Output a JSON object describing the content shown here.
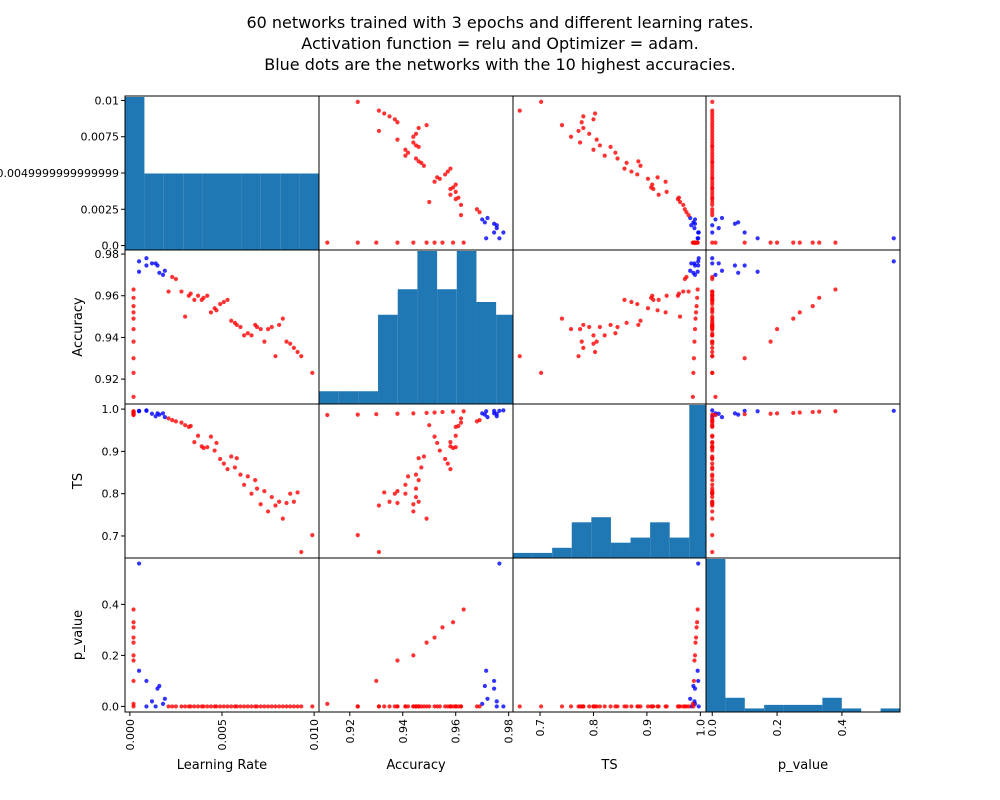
{
  "chart_data": {
    "type": "scatter_matrix",
    "title_lines": [
      "60 networks trained with 3 epochs and different learning rates.",
      "Activation function = relu and Optimizer = adam.",
      "Blue dots are the networks with the 10 highest accuracies."
    ],
    "variables": [
      "Learning Rate",
      "Accuracy",
      "TS",
      "p_value"
    ],
    "axes": {
      "Learning Rate": {
        "range": [
          -0.0001,
          0.0101
        ],
        "x_ticks": [
          0.0,
          0.005,
          0.01
        ],
        "x_tick_labels": [
          "0.000",
          "0.005",
          "0.010"
        ],
        "y_ticks": [
          0.0,
          0.0025,
          0.0049999999999999,
          0.0075,
          0.01
        ],
        "y_tick_labels": [
          "0.0",
          "0.0025",
          "0.0049999999999999",
          "0.0075",
          "0.01"
        ]
      },
      "Accuracy": {
        "range": [
          0.9095,
          0.9805
        ],
        "ticks": [
          0.92,
          0.94,
          0.96,
          0.98
        ],
        "tick_labels": [
          "0.92",
          "0.94",
          "0.96",
          "0.98"
        ]
      },
      "TS": {
        "range": [
          0.655,
          1.005
        ],
        "ticks": [
          0.7,
          0.8,
          0.9,
          1.0
        ],
        "tick_labels": [
          "0.7",
          "0.8",
          "0.9",
          "1.0"
        ]
      },
      "p_value": {
        "range": [
          -0.01,
          0.57
        ],
        "ticks": [
          0.0,
          0.2,
          0.4
        ],
        "tick_labels": [
          "0.0",
          "0.2",
          "0.4"
        ]
      }
    },
    "colors": {
      "top10": "#0000ff",
      "other": "#ff0000",
      "hist": "#1f77b4"
    },
    "points": [
      {
        "lr": 0.0002,
        "acc": 0.963,
        "ts": 0.995,
        "p": 0.38,
        "top": false
      },
      {
        "lr": 0.0002,
        "acc": 0.959,
        "ts": 0.994,
        "p": 0.33,
        "top": false
      },
      {
        "lr": 0.0002,
        "acc": 0.955,
        "ts": 0.993,
        "p": 0.31,
        "top": false
      },
      {
        "lr": 0.0002,
        "acc": 0.952,
        "ts": 0.992,
        "p": 0.27,
        "top": false
      },
      {
        "lr": 0.0002,
        "acc": 0.949,
        "ts": 0.991,
        "p": 0.25,
        "top": false
      },
      {
        "lr": 0.0002,
        "acc": 0.944,
        "ts": 0.99,
        "p": 0.2,
        "top": false
      },
      {
        "lr": 0.0002,
        "acc": 0.938,
        "ts": 0.989,
        "p": 0.18,
        "top": false
      },
      {
        "lr": 0.0002,
        "acc": 0.93,
        "ts": 0.988,
        "p": 0.1,
        "top": false
      },
      {
        "lr": 0.0002,
        "acc": 0.923,
        "ts": 0.987,
        "p": 0.0,
        "top": false
      },
      {
        "lr": 0.0002,
        "acc": 0.9115,
        "ts": 0.986,
        "p": 0.01,
        "top": false
      },
      {
        "lr": 0.0005,
        "acc": 0.9715,
        "ts": 0.995,
        "p": 0.14,
        "top": true
      },
      {
        "lr": 0.0005,
        "acc": 0.9765,
        "ts": 0.996,
        "p": 0.56,
        "top": true
      },
      {
        "lr": 0.0009,
        "acc": 0.9745,
        "ts": 0.996,
        "p": 0.1,
        "top": true
      },
      {
        "lr": 0.0009,
        "acc": 0.978,
        "ts": 0.997,
        "p": 0.0,
        "top": true
      },
      {
        "lr": 0.0012,
        "acc": 0.9755,
        "ts": 0.989,
        "p": 0.02,
        "top": true
      },
      {
        "lr": 0.0014,
        "acc": 0.9755,
        "ts": 0.983,
        "p": 0.0,
        "top": true
      },
      {
        "lr": 0.0015,
        "acc": 0.9745,
        "ts": 0.99,
        "p": 0.07,
        "top": true
      },
      {
        "lr": 0.0016,
        "acc": 0.971,
        "ts": 0.987,
        "p": 0.08,
        "top": true
      },
      {
        "lr": 0.0018,
        "acc": 0.97,
        "ts": 0.99,
        "p": 0.01,
        "top": true
      },
      {
        "lr": 0.0019,
        "acc": 0.972,
        "ts": 0.981,
        "p": 0.03,
        "top": true
      },
      {
        "lr": 0.0021,
        "acc": 0.962,
        "ts": 0.978,
        "p": 0.0,
        "top": false
      },
      {
        "lr": 0.0023,
        "acc": 0.969,
        "ts": 0.974,
        "p": 0.0,
        "top": false
      },
      {
        "lr": 0.0025,
        "acc": 0.968,
        "ts": 0.971,
        "p": 0.0,
        "top": false
      },
      {
        "lr": 0.0028,
        "acc": 0.962,
        "ts": 0.968,
        "p": 0.0,
        "top": false
      },
      {
        "lr": 0.003,
        "acc": 0.95,
        "ts": 0.962,
        "p": 0.0,
        "top": false
      },
      {
        "lr": 0.0032,
        "acc": 0.96,
        "ts": 0.958,
        "p": 0.0,
        "top": false
      },
      {
        "lr": 0.0033,
        "acc": 0.961,
        "ts": 0.96,
        "p": 0.0,
        "top": false
      },
      {
        "lr": 0.0035,
        "acc": 0.958,
        "ts": 0.922,
        "p": 0.0,
        "top": false
      },
      {
        "lr": 0.0037,
        "acc": 0.96,
        "ts": 0.937,
        "p": 0.0,
        "top": false
      },
      {
        "lr": 0.0039,
        "acc": 0.958,
        "ts": 0.912,
        "p": 0.0,
        "top": false
      },
      {
        "lr": 0.004,
        "acc": 0.959,
        "ts": 0.908,
        "p": 0.0,
        "top": false
      },
      {
        "lr": 0.0042,
        "acc": 0.96,
        "ts": 0.91,
        "p": 0.0,
        "top": false
      },
      {
        "lr": 0.0044,
        "acc": 0.952,
        "ts": 0.935,
        "p": 0.0,
        "top": false
      },
      {
        "lr": 0.0046,
        "acc": 0.954,
        "ts": 0.902,
        "p": 0.0,
        "top": false
      },
      {
        "lr": 0.0047,
        "acc": 0.953,
        "ts": 0.92,
        "p": 0.0,
        "top": false
      },
      {
        "lr": 0.0049,
        "acc": 0.956,
        "ts": 0.882,
        "p": 0.0,
        "top": false
      },
      {
        "lr": 0.0051,
        "acc": 0.957,
        "ts": 0.871,
        "p": 0.0,
        "top": false
      },
      {
        "lr": 0.0053,
        "acc": 0.958,
        "ts": 0.858,
        "p": 0.0,
        "top": false
      },
      {
        "lr": 0.0055,
        "acc": 0.948,
        "ts": 0.888,
        "p": 0.0,
        "top": false
      },
      {
        "lr": 0.0057,
        "acc": 0.947,
        "ts": 0.862,
        "p": 0.0,
        "top": false
      },
      {
        "lr": 0.0058,
        "acc": 0.946,
        "ts": 0.884,
        "p": 0.0,
        "top": false
      },
      {
        "lr": 0.006,
        "acc": 0.945,
        "ts": 0.845,
        "p": 0.0,
        "top": false
      },
      {
        "lr": 0.0062,
        "acc": 0.941,
        "ts": 0.821,
        "p": 0.0,
        "top": false
      },
      {
        "lr": 0.0064,
        "acc": 0.942,
        "ts": 0.841,
        "p": 0.0,
        "top": false
      },
      {
        "lr": 0.0066,
        "acc": 0.941,
        "ts": 0.8,
        "p": 0.0,
        "top": false
      },
      {
        "lr": 0.0068,
        "acc": 0.946,
        "ts": 0.832,
        "p": 0.0,
        "top": false
      },
      {
        "lr": 0.0069,
        "acc": 0.945,
        "ts": 0.812,
        "p": 0.0,
        "top": false
      },
      {
        "lr": 0.0071,
        "acc": 0.944,
        "ts": 0.775,
        "p": 0.0,
        "top": false
      },
      {
        "lr": 0.0073,
        "acc": 0.938,
        "ts": 0.806,
        "p": 0.0,
        "top": false
      },
      {
        "lr": 0.0075,
        "acc": 0.944,
        "ts": 0.758,
        "p": 0.0,
        "top": false
      },
      {
        "lr": 0.0077,
        "acc": 0.945,
        "ts": 0.792,
        "p": 0.0,
        "top": false
      },
      {
        "lr": 0.0079,
        "acc": 0.931,
        "ts": 0.772,
        "p": 0.0,
        "top": false
      },
      {
        "lr": 0.0081,
        "acc": 0.946,
        "ts": 0.781,
        "p": 0.0,
        "top": false
      },
      {
        "lr": 0.0083,
        "acc": 0.949,
        "ts": 0.741,
        "p": 0.0,
        "top": false
      },
      {
        "lr": 0.0085,
        "acc": 0.938,
        "ts": 0.778,
        "p": 0.0,
        "top": false
      },
      {
        "lr": 0.0087,
        "acc": 0.937,
        "ts": 0.8,
        "p": 0.0,
        "top": false
      },
      {
        "lr": 0.0089,
        "acc": 0.935,
        "ts": 0.781,
        "p": 0.0,
        "top": false
      },
      {
        "lr": 0.0091,
        "acc": 0.933,
        "ts": 0.803,
        "p": 0.0,
        "top": false
      },
      {
        "lr": 0.0093,
        "acc": 0.931,
        "ts": 0.662,
        "p": 0.0,
        "top": false
      },
      {
        "lr": 0.0099,
        "acc": 0.923,
        "ts": 0.702,
        "p": 0.0,
        "top": false
      }
    ],
    "histograms": {
      "Learning Rate": {
        "bin_edges": [
          0.0,
          0.001,
          0.002,
          0.003,
          0.004,
          0.005,
          0.006,
          0.007,
          0.008,
          0.009,
          0.01
        ],
        "counts": [
          12,
          6,
          6,
          6,
          6,
          6,
          6,
          6,
          6,
          6
        ]
      },
      "Accuracy": {
        "bin_edges": [
          0.9115,
          0.9185,
          0.9255,
          0.9325,
          0.9395,
          0.9465,
          0.9535,
          0.9605,
          0.9675,
          0.9745,
          0.9805
        ],
        "counts": [
          1,
          1,
          1,
          7,
          9,
          12,
          9,
          12,
          8,
          7
        ]
      },
      "TS": {
        "bin_edges": [
          0.662,
          0.696,
          0.73,
          0.764,
          0.798,
          0.832,
          0.866,
          0.9,
          0.934,
          0.968,
          0.997
        ],
        "counts": [
          1,
          1,
          2,
          7,
          8,
          3,
          4,
          7,
          4,
          30
        ]
      },
      "p_value": {
        "bin_edges": [
          0.0,
          0.056,
          0.112,
          0.168,
          0.224,
          0.28,
          0.336,
          0.392,
          0.448,
          0.504,
          0.56
        ],
        "counts": [
          43,
          4,
          1,
          2,
          2,
          2,
          4,
          1,
          0,
          1
        ]
      }
    }
  }
}
